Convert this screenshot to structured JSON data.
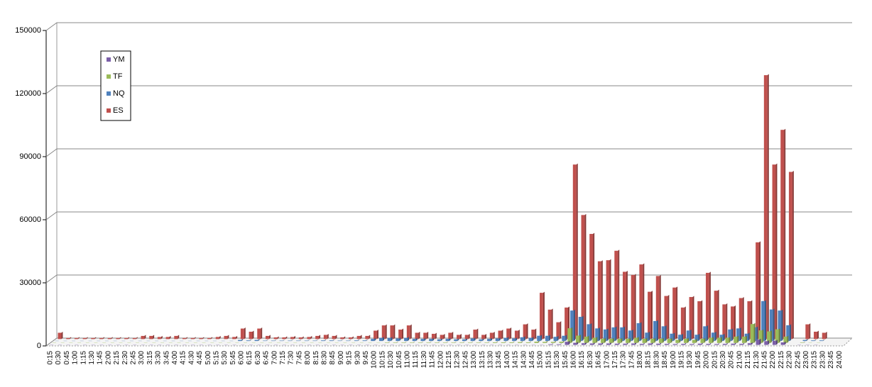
{
  "chart_data": {
    "type": "bar3d",
    "categories": [
      "0:15",
      "0:30",
      "0:45",
      "1:00",
      "1:15",
      "1:30",
      "1:45",
      "2:00",
      "2:15",
      "2:30",
      "2:45",
      "3:00",
      "3:15",
      "3:30",
      "3:45",
      "4:00",
      "4:15",
      "4:30",
      "4:45",
      "5:00",
      "5:15",
      "5:30",
      "5:45",
      "6:00",
      "6:15",
      "6:30",
      "6:45",
      "7:00",
      "7:15",
      "7:30",
      "7:45",
      "8:00",
      "8:15",
      "8:30",
      "8:45",
      "9:00",
      "9:15",
      "9:30",
      "9:45",
      "10:00",
      "10:15",
      "10:30",
      "10:45",
      "11:00",
      "11:15",
      "11:30",
      "11:45",
      "12:00",
      "12:15",
      "12:30",
      "12:45",
      "13:00",
      "13:15",
      "13:30",
      "13:45",
      "14:00",
      "14:15",
      "14:30",
      "14:45",
      "15:00",
      "15:15",
      "15:30",
      "15:45",
      "16:00",
      "16:15",
      "16:30",
      "16:45",
      "17:00",
      "17:15",
      "17:30",
      "17:45",
      "18:00",
      "18:15",
      "18:30",
      "18:45",
      "19:00",
      "19:15",
      "19:30",
      "19:45",
      "20:00",
      "20:15",
      "20:30",
      "20:45",
      "21:00",
      "21:15",
      "21:30",
      "21:45",
      "22:00",
      "22:15",
      "22:30",
      "22:45",
      "23:00",
      "23:15",
      "23:30",
      "23:45",
      "24:00"
    ],
    "series": [
      {
        "name": "YM",
        "color": "#7b5fa8",
        "values": [
          100,
          100,
          100,
          100,
          100,
          100,
          100,
          100,
          100,
          100,
          100,
          100,
          100,
          100,
          100,
          100,
          100,
          100,
          100,
          100,
          100,
          100,
          100,
          100,
          100,
          100,
          100,
          100,
          100,
          100,
          100,
          100,
          100,
          100,
          100,
          100,
          100,
          100,
          100,
          100,
          100,
          100,
          100,
          100,
          100,
          100,
          100,
          100,
          100,
          100,
          100,
          100,
          100,
          100,
          100,
          100,
          100,
          100,
          100,
          100,
          300,
          300,
          1500,
          1000,
          800,
          700,
          700,
          700,
          600,
          600,
          700,
          500,
          700,
          600,
          500,
          400,
          500,
          400,
          600,
          500,
          400,
          500,
          600,
          500,
          800,
          2500,
          1800,
          2000,
          1200,
          0,
          100,
          100,
          100,
          0,
          0,
          0
        ]
      },
      {
        "name": "TF",
        "color": "#9bbb59",
        "values": [
          100,
          100,
          100,
          100,
          100,
          100,
          100,
          100,
          100,
          100,
          100,
          100,
          100,
          100,
          100,
          100,
          100,
          100,
          100,
          100,
          100,
          100,
          100,
          100,
          100,
          100,
          100,
          100,
          100,
          100,
          100,
          100,
          100,
          100,
          100,
          100,
          100,
          100,
          100,
          100,
          200,
          200,
          200,
          200,
          200,
          200,
          200,
          200,
          200,
          200,
          200,
          200,
          200,
          300,
          300,
          300,
          400,
          300,
          600,
          500,
          500,
          600,
          7000,
          3500,
          3000,
          2500,
          2000,
          2000,
          2000,
          2000,
          2500,
          2000,
          2000,
          2000,
          2000,
          1500,
          2000,
          1500,
          2000,
          2500,
          2500,
          2500,
          3000,
          3000,
          9000,
          6000,
          5500,
          6500,
          3000,
          0,
          200,
          100,
          100,
          0,
          0,
          0
        ]
      },
      {
        "name": "NQ",
        "color": "#4f81bd",
        "values": [
          100,
          100,
          100,
          100,
          100,
          100,
          100,
          100,
          100,
          100,
          100,
          100,
          100,
          100,
          100,
          100,
          100,
          100,
          100,
          100,
          100,
          100,
          500,
          300,
          500,
          200,
          200,
          200,
          200,
          200,
          200,
          200,
          300,
          300,
          200,
          200,
          300,
          300,
          1000,
          1500,
          1500,
          1200,
          1500,
          1000,
          1000,
          1000,
          800,
          1000,
          800,
          800,
          1200,
          800,
          1000,
          1200,
          1500,
          1200,
          1800,
          1500,
          2500,
          2500,
          2000,
          2500,
          14500,
          11500,
          8000,
          6000,
          5500,
          6500,
          6500,
          5000,
          8500,
          4000,
          9500,
          7000,
          3500,
          3000,
          5000,
          3000,
          7000,
          4000,
          3000,
          5500,
          6000,
          3500,
          6500,
          19000,
          15000,
          14500,
          7500,
          0,
          500,
          300,
          300,
          0,
          0,
          0
        ]
      },
      {
        "name": "ES",
        "color": "#c0504d",
        "values": [
          3000,
          500,
          500,
          500,
          500,
          500,
          500,
          500,
          500,
          500,
          1500,
          1500,
          1000,
          1000,
          1500,
          500,
          500,
          500,
          500,
          1000,
          1500,
          1000,
          5000,
          3500,
          5000,
          1500,
          800,
          800,
          1000,
          800,
          1000,
          1500,
          2000,
          1500,
          800,
          800,
          1500,
          1500,
          4000,
          6500,
          6500,
          4500,
          6500,
          3000,
          3000,
          2500,
          2000,
          3000,
          2000,
          2000,
          4500,
          2000,
          3000,
          4000,
          5000,
          4000,
          7000,
          4500,
          22000,
          14000,
          8000,
          15000,
          83000,
          59000,
          50000,
          37000,
          37500,
          42000,
          32000,
          30500,
          35500,
          22500,
          30000,
          20500,
          24500,
          15000,
          20000,
          18000,
          31500,
          23000,
          16500,
          15500,
          19500,
          18000,
          46000,
          125500,
          83000,
          99500,
          79500,
          0,
          7000,
          3500,
          3000,
          0,
          0,
          0
        ]
      }
    ],
    "ylim": [
      0,
      150000
    ],
    "yticks": [
      0,
      30000,
      60000,
      90000,
      120000,
      150000
    ],
    "grid": true,
    "legend": "upper-left"
  }
}
